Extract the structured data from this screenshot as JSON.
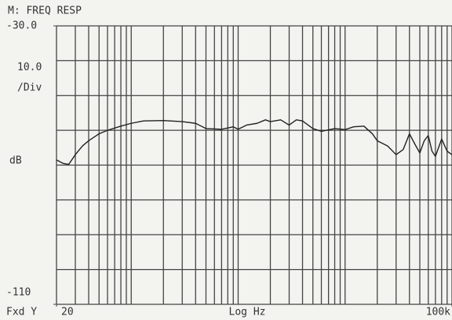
{
  "chart_data": {
    "type": "line",
    "title": "M: FREQ RESP",
    "xlabel": "Log Hz",
    "ylabel": "dB",
    "annotations": [
      "10.0",
      "/Div",
      "Fxd Y"
    ],
    "xscale": "log",
    "grid": true,
    "color": "#222222",
    "xlim": [
      20,
      100000
    ],
    "ylim": [
      -110,
      -30
    ],
    "xticks": [
      20,
      {
        "value": 100000,
        "label": "100k"
      }
    ],
    "yticks": [
      {
        "value": -30,
        "label": "-30.0"
      },
      -110
    ],
    "xgrid": [
      20,
      30,
      40,
      50,
      60,
      70,
      80,
      90,
      100,
      200,
      300,
      400,
      500,
      600,
      700,
      800,
      900,
      1000,
      2000,
      3000,
      4000,
      5000,
      6000,
      7000,
      8000,
      9000,
      10000,
      20000,
      30000,
      40000,
      50000,
      60000,
      70000,
      80000,
      90000,
      100000
    ],
    "ygrid": [
      -30,
      -40,
      -50,
      -60,
      -70,
      -80,
      -90,
      -100,
      -110
    ],
    "x": [
      20,
      23,
      26,
      30,
      35,
      40,
      50,
      60,
      80,
      100,
      130,
      200,
      300,
      400,
      500,
      700,
      900,
      1000,
      1200,
      1500,
      1800,
      2000,
      2500,
      3000,
      3500,
      4000,
      5000,
      6000,
      8000,
      10000,
      12000,
      15000,
      18000,
      20000,
      25000,
      30000,
      35000,
      40000,
      45000,
      50000,
      55000,
      60000,
      65000,
      70000,
      80000,
      90000,
      100000
    ],
    "values": [
      -68.5,
      -69.5,
      -69.8,
      -67,
      -64.5,
      -63,
      -61,
      -60,
      -58.8,
      -58,
      -57.3,
      -57.2,
      -57.5,
      -58,
      -59.5,
      -59.7,
      -59,
      -59.7,
      -58.5,
      -58,
      -57,
      -57.5,
      -57,
      -58.5,
      -57,
      -57.3,
      -59.5,
      -60.3,
      -59.5,
      -59.8,
      -59,
      -58.8,
      -61,
      -63,
      -64.5,
      -67,
      -65.5,
      -61,
      -64,
      -66.5,
      -63,
      -61.5,
      -66,
      -67.5,
      -62.5,
      -66,
      -67
    ]
  }
}
